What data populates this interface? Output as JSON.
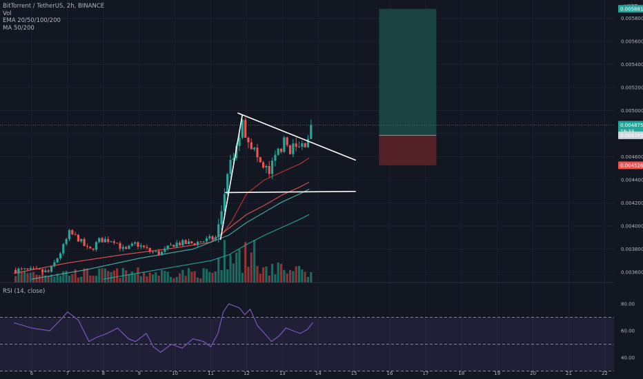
{
  "legend": {
    "title": "BitTorrent / TetherUS, 2h, BINANCE",
    "vol": "Vol",
    "ema": "EMA 20/50/100/200",
    "ma": "MA 50/200"
  },
  "rsi": {
    "label": "RSI (14, close)",
    "ticks": [
      "80.00",
      "60.00",
      "40.00"
    ]
  },
  "currency": "USDT",
  "colors": {
    "bg": "#131722",
    "grid": "#1e2230",
    "up": "#26a69a",
    "down": "#ef5350",
    "volUp": "#1c6b63",
    "volDown": "#8c3535",
    "rsi": "#7e57c2",
    "ema20": "#c0392b",
    "ema50": "#ef5350",
    "ema100": "#4db6ac",
    "ema200": "#26a69a",
    "target": "#1b4a45",
    "stop": "#5a2428",
    "drawing": "#ffffff"
  },
  "chart_data": {
    "type": "candlestick",
    "symbol": "BitTorrent / TetherUS",
    "interval": "2h",
    "exchange": "BINANCE",
    "x_labels": [
      "6",
      "7",
      "8",
      "9",
      "10",
      "11",
      "12",
      "13",
      "14",
      "15",
      "16",
      "17",
      "18",
      "19",
      "20",
      "21",
      "22"
    ],
    "y_ticks": [
      "0.0036000",
      "0.0038000",
      "0.0040000",
      "0.0042000",
      "0.0044000",
      "0.0046000",
      "0.0048000",
      "0.0050000",
      "0.0052000",
      "0.0054000",
      "0.0056000",
      "0.0058000"
    ],
    "ylim": [
      0.00356,
      0.006
    ],
    "price_tags": {
      "top": "0.0058819",
      "current": "0.0048750",
      "countdown": "19:33",
      "entry": "0.0047855",
      "stop": "0.0045262"
    },
    "trade_box": {
      "start_x": 15.7,
      "end_x": 17.3,
      "entry": 0.0047855,
      "target": 0.0058819,
      "stop": 0.0045262
    },
    "trendlines": [
      {
        "name": "triangle-upper",
        "from": [
          11.75,
          0.00498
        ],
        "to": [
          15.05,
          0.00457
        ]
      },
      {
        "name": "triangle-lower",
        "from": [
          11.4,
          0.00429
        ],
        "to": [
          15.05,
          0.0043
        ]
      },
      {
        "name": "pole",
        "from": [
          11.27,
          0.00388
        ],
        "to": [
          11.88,
          0.00496
        ]
      }
    ],
    "moving_averages": [
      {
        "name": "EMA 20",
        "points": [
          [
            11.3,
            0.00392
          ],
          [
            11.6,
            0.00405
          ],
          [
            12.0,
            0.00428
          ],
          [
            12.5,
            0.0044
          ],
          [
            13.0,
            0.00447
          ],
          [
            13.5,
            0.00454
          ],
          [
            13.75,
            0.00459
          ]
        ]
      },
      {
        "name": "EMA 50",
        "points": [
          [
            5.5,
            0.00359
          ],
          [
            7.0,
            0.00368
          ],
          [
            8.5,
            0.00375
          ],
          [
            10.0,
            0.00381
          ],
          [
            11.0,
            0.00386
          ],
          [
            11.5,
            0.00398
          ],
          [
            12.0,
            0.0041
          ],
          [
            12.5,
            0.00418
          ],
          [
            13.0,
            0.00427
          ],
          [
            13.5,
            0.00434
          ],
          [
            13.75,
            0.00438
          ]
        ]
      },
      {
        "name": "EMA 100",
        "points": [
          [
            6.0,
            0.00354
          ],
          [
            7.5,
            0.00362
          ],
          [
            9.0,
            0.00372
          ],
          [
            10.5,
            0.0038
          ],
          [
            11.5,
            0.00392
          ],
          [
            12.0,
            0.00403
          ],
          [
            12.5,
            0.00412
          ],
          [
            13.0,
            0.00421
          ],
          [
            13.5,
            0.00428
          ],
          [
            13.75,
            0.00432
          ]
        ]
      },
      {
        "name": "MA 200",
        "points": [
          [
            8.0,
            0.00354
          ],
          [
            9.5,
            0.00362
          ],
          [
            11.0,
            0.0037
          ],
          [
            11.5,
            0.00375
          ],
          [
            12.0,
            0.00384
          ],
          [
            12.5,
            0.00392
          ],
          [
            13.0,
            0.00399
          ],
          [
            13.5,
            0.00406
          ],
          [
            13.75,
            0.0041
          ]
        ]
      }
    ],
    "rsi_points": [
      [
        5.5,
        66
      ],
      [
        6.0,
        62
      ],
      [
        6.5,
        60
      ],
      [
        6.8,
        68
      ],
      [
        7.0,
        74
      ],
      [
        7.3,
        68
      ],
      [
        7.6,
        52
      ],
      [
        7.8,
        55
      ],
      [
        8.1,
        58
      ],
      [
        8.4,
        62
      ],
      [
        8.7,
        54
      ],
      [
        8.9,
        52
      ],
      [
        9.2,
        58
      ],
      [
        9.4,
        48
      ],
      [
        9.6,
        44
      ],
      [
        9.9,
        50
      ],
      [
        10.2,
        47
      ],
      [
        10.5,
        54
      ],
      [
        10.8,
        52
      ],
      [
        11.0,
        48
      ],
      [
        11.2,
        58
      ],
      [
        11.35,
        74
      ],
      [
        11.5,
        80
      ],
      [
        11.8,
        77
      ],
      [
        11.95,
        72
      ],
      [
        12.1,
        76
      ],
      [
        12.3,
        64
      ],
      [
        12.5,
        58
      ],
      [
        12.7,
        52
      ],
      [
        12.9,
        56
      ],
      [
        13.1,
        62
      ],
      [
        13.3,
        60
      ],
      [
        13.5,
        58
      ],
      [
        13.7,
        61
      ],
      [
        13.85,
        66
      ]
    ]
  }
}
